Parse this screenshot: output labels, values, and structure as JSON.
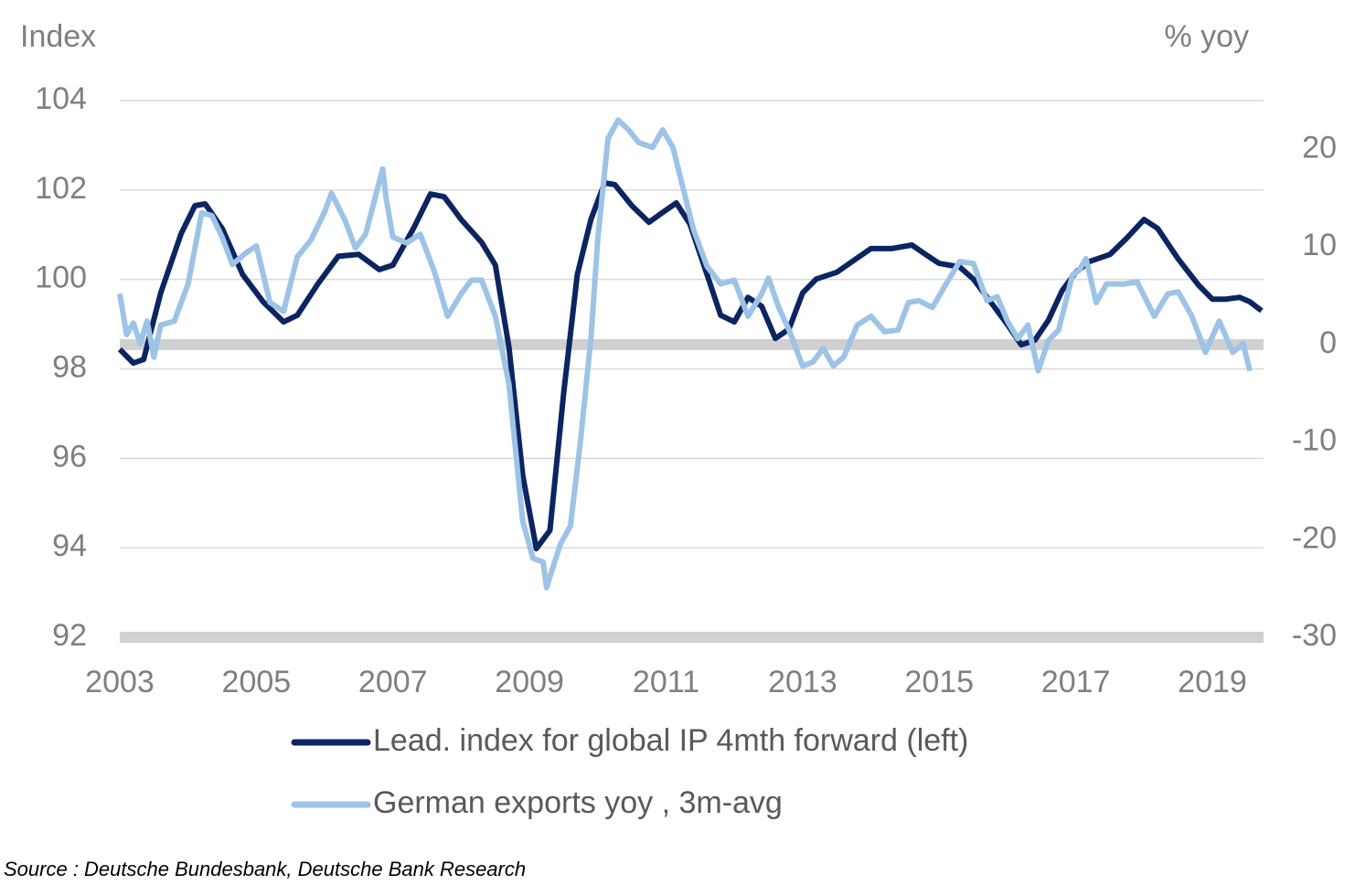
{
  "chart_data": {
    "type": "line",
    "y_label": "Index",
    "y2_label": "% yoy",
    "source": "Source : Deutsche Bundesbank, Deutsche Bank Research",
    "xlim": [
      2003,
      2019.75
    ],
    "xticks": [
      2003,
      2005,
      2007,
      2009,
      2011,
      2013,
      2015,
      2017,
      2019
    ],
    "ylim": [
      92,
      104
    ],
    "yticks": [
      92,
      94,
      96,
      98,
      100,
      102,
      104
    ],
    "y2lim": [
      -30,
      25
    ],
    "y2ticks": [
      -30,
      -20,
      -10,
      0,
      10,
      20
    ],
    "grid": true,
    "series": [
      {
        "name": "Lead. index for global IP 4mth forward (left)",
        "color": "#0c2461",
        "axis": "y",
        "x": [
          2003.0,
          2003.2,
          2003.35,
          2003.6,
          2003.9,
          2004.1,
          2004.25,
          2004.5,
          2004.8,
          2005.1,
          2005.4,
          2005.6,
          2005.9,
          2006.2,
          2006.5,
          2006.8,
          2007.0,
          2007.3,
          2007.55,
          2007.75,
          2008.0,
          2008.3,
          2008.5,
          2008.7,
          2008.9,
          2009.1,
          2009.3,
          2009.5,
          2009.7,
          2009.9,
          2010.1,
          2010.25,
          2010.5,
          2010.75,
          2010.95,
          2011.15,
          2011.35,
          2011.6,
          2011.8,
          2012.0,
          2012.2,
          2012.4,
          2012.6,
          2012.8,
          2013.0,
          2013.2,
          2013.5,
          2013.8,
          2014.0,
          2014.3,
          2014.6,
          2014.8,
          2015.0,
          2015.3,
          2015.5,
          2015.8,
          2016.0,
          2016.2,
          2016.4,
          2016.6,
          2016.8,
          2017.0,
          2017.2,
          2017.5,
          2017.75,
          2018.0,
          2018.2,
          2018.5,
          2018.8,
          2019.0,
          2019.2,
          2019.4,
          2019.55,
          2019.72
        ],
        "values": [
          98.44,
          98.13,
          98.21,
          99.7,
          101.03,
          101.65,
          101.69,
          101.14,
          100.11,
          99.5,
          99.05,
          99.2,
          99.9,
          100.52,
          100.56,
          100.22,
          100.32,
          101.14,
          101.91,
          101.85,
          101.34,
          100.83,
          100.32,
          98.48,
          95.62,
          93.98,
          94.39,
          97.46,
          100.11,
          101.34,
          102.16,
          102.12,
          101.65,
          101.28,
          101.5,
          101.71,
          101.24,
          100.11,
          99.2,
          99.05,
          99.6,
          99.4,
          98.68,
          98.89,
          99.7,
          100.01,
          100.16,
          100.48,
          100.69,
          100.69,
          100.77,
          100.56,
          100.36,
          100.28,
          100.01,
          99.4,
          98.99,
          98.54,
          98.64,
          99.09,
          99.75,
          100.16,
          100.4,
          100.56,
          100.93,
          101.34,
          101.14,
          100.46,
          99.87,
          99.56,
          99.56,
          99.6,
          99.5,
          99.3
        ]
      },
      {
        "name": "German exports yoy , 3m-avg",
        "color": "#9dc3e6",
        "axis": "y2",
        "x": [
          2003.0,
          2003.1,
          2003.2,
          2003.3,
          2003.4,
          2003.5,
          2003.6,
          2003.8,
          2004.0,
          2004.2,
          2004.35,
          2004.5,
          2004.65,
          2004.85,
          2005.0,
          2005.2,
          2005.4,
          2005.6,
          2005.8,
          2006.0,
          2006.1,
          2006.3,
          2006.45,
          2006.6,
          2006.85,
          2006.9,
          2007.0,
          2007.2,
          2007.4,
          2007.6,
          2007.8,
          2008.0,
          2008.15,
          2008.3,
          2008.5,
          2008.7,
          2008.9,
          2009.05,
          2009.2,
          2009.25,
          2009.45,
          2009.6,
          2009.75,
          2009.9,
          2010.0,
          2010.15,
          2010.3,
          2010.45,
          2010.6,
          2010.8,
          2010.95,
          2011.1,
          2011.25,
          2011.4,
          2011.6,
          2011.8,
          2012.0,
          2012.2,
          2012.4,
          2012.5,
          2012.65,
          2012.8,
          2013.0,
          2013.15,
          2013.3,
          2013.45,
          2013.6,
          2013.8,
          2014.0,
          2014.2,
          2014.4,
          2014.55,
          2014.7,
          2014.9,
          2015.1,
          2015.3,
          2015.5,
          2015.7,
          2015.85,
          2016.0,
          2016.15,
          2016.3,
          2016.45,
          2016.6,
          2016.75,
          2016.95,
          2017.05,
          2017.15,
          2017.3,
          2017.45,
          2017.7,
          2017.9,
          2018.15,
          2018.35,
          2018.5,
          2018.7,
          2018.9,
          2019.1,
          2019.3,
          2019.45,
          2019.55
        ],
        "values": [
          5.2,
          1.0,
          2.2,
          0.1,
          2.4,
          -1.3,
          2.0,
          2.4,
          6.2,
          13.5,
          13.2,
          11.0,
          8.2,
          9.4,
          10.1,
          4.3,
          3.4,
          9.0,
          10.7,
          13.6,
          15.5,
          12.7,
          9.9,
          11.3,
          18.0,
          15.0,
          11.0,
          10.4,
          11.3,
          7.6,
          2.9,
          5.2,
          6.6,
          6.6,
          2.9,
          -4.1,
          -18.1,
          -21.9,
          -22.3,
          -24.9,
          -20.5,
          -18.6,
          -9.7,
          0.6,
          10.8,
          21.1,
          23.0,
          22.0,
          20.7,
          20.2,
          22.0,
          20.2,
          16.0,
          11.8,
          8.0,
          6.2,
          6.6,
          2.9,
          5.2,
          6.8,
          3.8,
          1.5,
          -2.2,
          -1.8,
          -0.4,
          -2.2,
          -1.3,
          2.0,
          2.9,
          1.3,
          1.5,
          4.3,
          4.5,
          3.8,
          6.2,
          8.5,
          8.3,
          4.5,
          4.9,
          2.4,
          0.6,
          2.0,
          -2.7,
          0.4,
          1.5,
          7.1,
          7.6,
          8.8,
          4.3,
          6.2,
          6.2,
          6.4,
          2.9,
          5.2,
          5.4,
          2.9,
          -0.8,
          2.4,
          -0.8,
          0.1,
          -2.7
        ]
      }
    ]
  }
}
